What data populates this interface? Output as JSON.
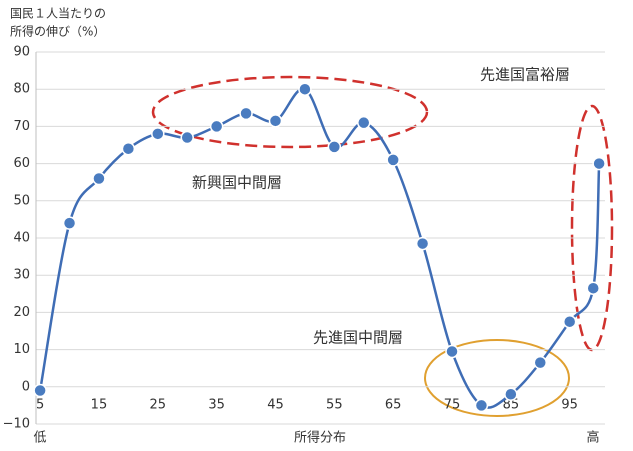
{
  "chart_data": {
    "type": "line",
    "title_lines": [
      "国民１人当たりの",
      "所得の伸び（%）"
    ],
    "x_axis_labels": {
      "low": "低",
      "center": "所得分布",
      "high": "高"
    },
    "annotations": [
      "先進国富裕層",
      "新興国中間層",
      "先進国中間層"
    ],
    "x": [
      5,
      10,
      15,
      20,
      25,
      30,
      35,
      40,
      45,
      50,
      55,
      60,
      65,
      70,
      75,
      80,
      85,
      90,
      95,
      99,
      100
    ],
    "series": [
      {
        "color": "#3f6db5",
        "values": [
          -1,
          44,
          56,
          64,
          68,
          67,
          70,
          73.5,
          71.5,
          80,
          64.5,
          71,
          61,
          38.5,
          9.5,
          -5,
          -2,
          6.5,
          17.5,
          26.5,
          60
        ]
      }
    ],
    "xlim": [
      4.3,
      101
    ],
    "xticks": [
      5,
      15,
      25,
      35,
      45,
      55,
      65,
      75,
      85,
      95
    ],
    "ylim": [
      -10,
      90
    ],
    "yticks": [
      {
        "value": -10,
        "label": "−10"
      },
      0,
      10,
      20,
      30,
      40,
      50,
      60,
      70,
      80,
      90
    ],
    "grid": true
  }
}
